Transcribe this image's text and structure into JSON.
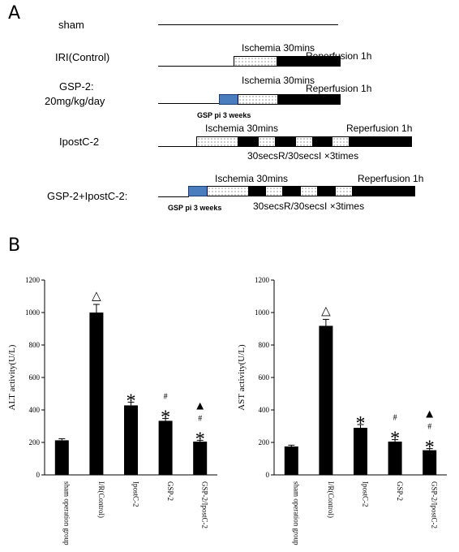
{
  "panel_a": {
    "letter": "A",
    "rows": [
      {
        "label": "sham"
      },
      {
        "label": "IRI(Control)",
        "ischemia": "Ischemia 30mins",
        "reperfusion": "Reperfusion 1h"
      },
      {
        "label_line1": "GSP-2:",
        "label_line2": "20mg/kg/day",
        "ischemia": "Ischemia 30mins",
        "reperfusion": "Reperfusion 1h",
        "gsp": "GSP pi 3 weeks"
      },
      {
        "label": "IpostC-2",
        "ischemia": "Ischemia 30mins",
        "reperfusion": "Reperfusion 1h",
        "cycles": "30secsR/30secsI ×3times"
      },
      {
        "label": "GSP-2+IpostC-2:",
        "ischemia": "Ischemia 30mins",
        "reperfusion": "Reperfusion 1h",
        "cycles": "30secsR/30secsI ×3times",
        "gsp": "GSP pi 3 weeks"
      }
    ]
  },
  "panel_b": {
    "letter": "B"
  },
  "chart_data": [
    {
      "type": "bar",
      "ylabel": "ALT activity(U/L)",
      "ylim": [
        0,
        1200
      ],
      "yticks": [
        "0",
        "200",
        "400",
        "600",
        "800",
        "1000",
        "1200"
      ],
      "categories": [
        "sham operation group",
        "I/R(Control)",
        "IpostC-2",
        "GSP-2",
        "GSP-2/IpostC-2"
      ],
      "values": [
        213,
        1000,
        428,
        333,
        205
      ],
      "errors": [
        10,
        50,
        20,
        15,
        8
      ],
      "markers": [
        [],
        [
          "△"
        ],
        [
          "*"
        ],
        [
          "#",
          "*"
        ],
        [
          "▲",
          "#",
          "*"
        ]
      ]
    },
    {
      "type": "bar",
      "ylabel": "AST activity(U/L)",
      "ylim": [
        0,
        1200
      ],
      "yticks": [
        "0",
        "200",
        "400",
        "600",
        "800",
        "1000",
        "1200"
      ],
      "categories": [
        "sham operation group",
        "I/R(Control)",
        "IpostC-2",
        "GSP-2",
        "GSP-2/IpostC-2"
      ],
      "values": [
        175,
        918,
        290,
        205,
        152
      ],
      "errors": [
        8,
        40,
        20,
        12,
        10
      ],
      "markers": [
        [],
        [
          "△"
        ],
        [
          "*"
        ],
        [
          "#",
          "*"
        ],
        [
          "▲",
          "#",
          "*"
        ]
      ]
    }
  ]
}
